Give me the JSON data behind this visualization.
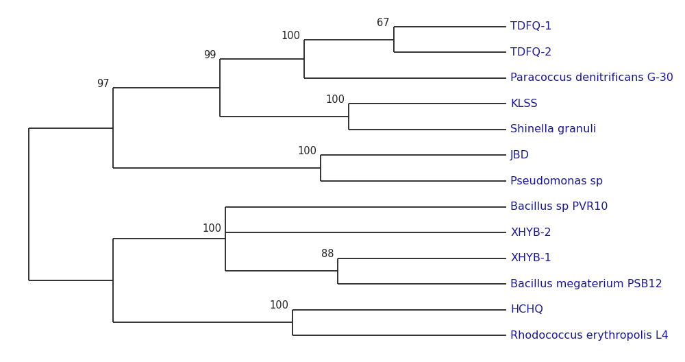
{
  "taxa": [
    "TDFQ-1",
    "TDFQ-2",
    "Paracoccus denitrificans G-30",
    "KLSS",
    "Shinella granuli",
    "JBD",
    "Pseudomonas sp",
    "Bacillus sp PVR10",
    "XHYB-2",
    "XHYB-1",
    "Bacillus megaterium PSB12",
    "HCHQ",
    "Rhodococcus erythropolis L4"
  ],
  "label_color": "#1a1a8b",
  "line_color": "#222222",
  "bg_color": "#ffffff",
  "bootstrap_color": "#222222",
  "fontsize": 11.5,
  "bootstrap_fontsize": 10.5,
  "figsize": [
    10.0,
    5.28
  ],
  "dpi": 100
}
